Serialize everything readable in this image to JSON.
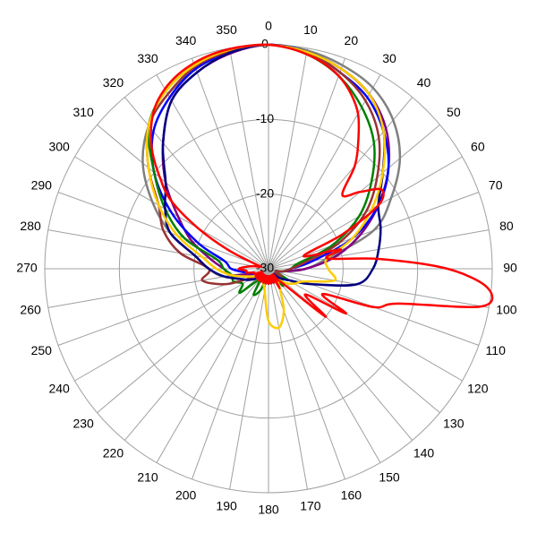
{
  "chart_data": {
    "type": "polar",
    "rlim": [
      -30,
      0
    ],
    "rticks": [
      -30,
      -20,
      -10,
      0
    ],
    "thetaticks": [
      0,
      10,
      20,
      30,
      40,
      50,
      60,
      70,
      80,
      90,
      100,
      110,
      120,
      130,
      140,
      150,
      160,
      170,
      180,
      190,
      200,
      210,
      220,
      230,
      240,
      250,
      260,
      270,
      280,
      290,
      300,
      310,
      320,
      330,
      340,
      350
    ],
    "grid": true,
    "theta": [
      0,
      10,
      20,
      30,
      40,
      50,
      60,
      70,
      80,
      90,
      100,
      110,
      120,
      130,
      140,
      150,
      160,
      170,
      180,
      190,
      200,
      210,
      220,
      230,
      240,
      250,
      260,
      270,
      280,
      290,
      300,
      310,
      320,
      330,
      340,
      350
    ],
    "series": [
      {
        "color": "#808080",
        "values": [
          0,
          -0.3,
          -1,
          -2,
          -4,
          -7,
          -11,
          -15,
          -22,
          -25,
          -28,
          -29,
          -28,
          -29,
          -28,
          -29,
          -28,
          -29,
          -28,
          -29,
          -28,
          -29,
          -28,
          -29,
          -28,
          -28,
          -24,
          -22,
          -20,
          -16,
          -12,
          -8,
          -5,
          -3,
          -1.5,
          -0.5
        ]
      },
      {
        "color": "#800080",
        "values": [
          0,
          -0.5,
          -1.5,
          -3,
          -5.5,
          -9,
          -13,
          -17,
          -21,
          -25,
          -28,
          -29,
          -28,
          -29,
          -28,
          -29,
          -28,
          -29,
          -28,
          -29,
          -28,
          -29,
          -28,
          -29,
          -28,
          -28,
          -25,
          -24,
          -22,
          -19,
          -16,
          -12,
          -8,
          -4,
          -2,
          -0.7
        ]
      },
      {
        "color": "#0000ff",
        "values": [
          0,
          -0.5,
          -2,
          -3.5,
          -6,
          -9,
          -13,
          -18,
          -24,
          -27,
          -28,
          -29,
          -28,
          -29,
          -28,
          -29,
          -28,
          -29,
          -28,
          -29,
          -28,
          -29,
          -28,
          -29,
          -28,
          -28,
          -27,
          -25,
          -24,
          -20,
          -15,
          -10,
          -6,
          -3.5,
          -1.5,
          -0.5
        ]
      },
      {
        "color": "#008000",
        "values": [
          0,
          -0.8,
          -2.5,
          -5,
          -8,
          -12,
          -16,
          -21,
          -26,
          -27,
          -28,
          -29,
          -27,
          -28,
          -27,
          -29,
          -28,
          -29,
          -28,
          -29,
          -27,
          -26,
          -28,
          -25,
          -26,
          -25,
          -25,
          -24,
          -23,
          -18,
          -14,
          -10,
          -5,
          -2.5,
          -1,
          -0.3
        ]
      },
      {
        "color": "#993333",
        "values": [
          0,
          -0.6,
          -2,
          -4,
          -7,
          -11,
          -15,
          -20,
          -25,
          -27,
          -28,
          -29,
          -28,
          -29,
          -28,
          -29,
          -28,
          -29,
          -28,
          -29,
          -28,
          -29,
          -28,
          -29,
          -28,
          -24,
          -21,
          -22,
          -18,
          -15,
          -13,
          -9,
          -5,
          -3,
          -1.2,
          -0.4
        ]
      },
      {
        "color": "#000080",
        "values": [
          0,
          -0.5,
          -1.5,
          -3,
          -6,
          -10,
          -13,
          -14,
          -15,
          -16,
          -18,
          -24,
          -27,
          -28,
          -29,
          -28,
          -29,
          -28,
          -29,
          -28,
          -29,
          -28,
          -29,
          -28,
          -27,
          -26,
          -24,
          -22,
          -20,
          -16,
          -14,
          -12,
          -8,
          -4,
          -2,
          -0.6
        ]
      },
      {
        "color": "#ffcc00",
        "values": [
          0,
          -0.5,
          -1.5,
          -3,
          -6,
          -10,
          -14,
          -18,
          -22,
          -22,
          -21,
          -25,
          -26,
          -27,
          -28,
          -27,
          -24,
          -22,
          -23,
          -27,
          -28,
          -29,
          -28,
          -29,
          -28,
          -27,
          -25,
          -23,
          -21,
          -17,
          -13,
          -9,
          -5,
          -2.5,
          -1,
          -0.2
        ]
      },
      {
        "color": "#ff0000",
        "theta": [
          0,
          5,
          10,
          15,
          20,
          25,
          30,
          35,
          40,
          45,
          50,
          55,
          60,
          65,
          70,
          75,
          80,
          85,
          90,
          95,
          100,
          105,
          110,
          115,
          120,
          125,
          130,
          135,
          140,
          145,
          150,
          155,
          160,
          165,
          170,
          175,
          180,
          185,
          190,
          195,
          200,
          205,
          210,
          215,
          220,
          225,
          230,
          235,
          240,
          245,
          250,
          255,
          260,
          265,
          270,
          275,
          280,
          285,
          290,
          295,
          300,
          305,
          310,
          315,
          320,
          325,
          330,
          335,
          340,
          345,
          350,
          355
        ],
        "values": [
          0,
          -0.3,
          -0.8,
          -1.5,
          -2.5,
          -4,
          -6,
          -9,
          -12,
          -16,
          -14,
          -11.5,
          -13,
          -19,
          -25,
          -20,
          -22,
          -15,
          -6,
          -0.5,
          -1,
          -12,
          -15,
          -22,
          -18,
          -24,
          -20,
          -27,
          -28,
          -29,
          -27,
          -29,
          -28,
          -29,
          -28,
          -29,
          -28,
          -29,
          -28,
          -29,
          -28,
          -29,
          -28,
          -29,
          -28,
          -29,
          -28,
          -29,
          -28,
          -29,
          -28,
          -28,
          -27,
          -27,
          -26,
          -27,
          -28,
          -29,
          -28,
          -24,
          -19,
          -14,
          -11,
          -8,
          -5.5,
          -3.5,
          -2.2,
          -1.3,
          -0.7,
          -0.3,
          -0.1,
          0
        ]
      }
    ]
  }
}
